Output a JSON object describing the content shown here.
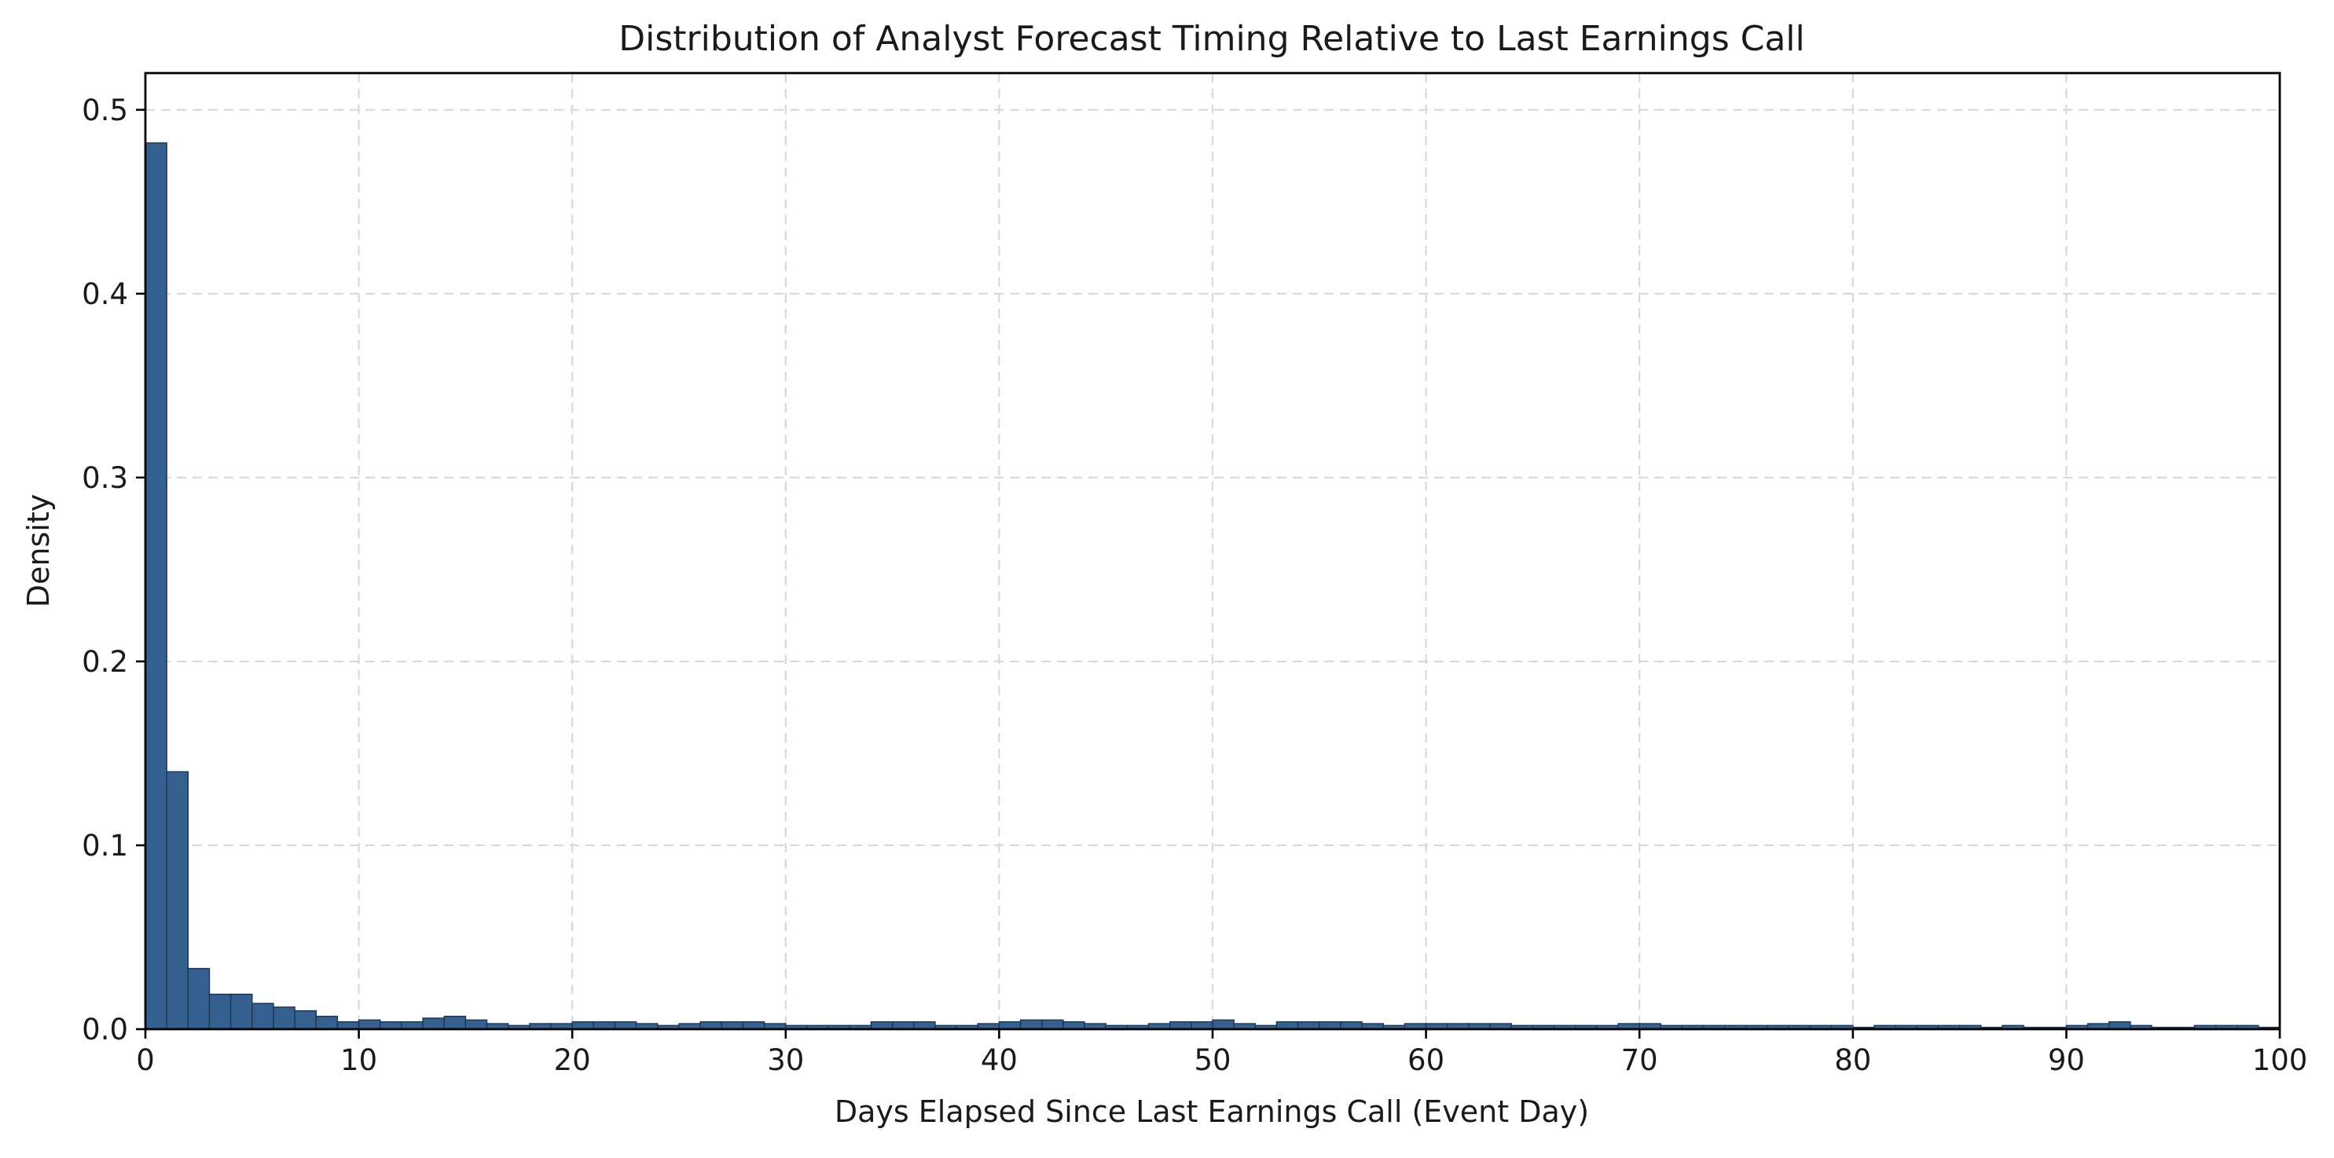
{
  "chart_data": {
    "type": "bar",
    "title": "Distribution of Analyst Forecast Timing Relative to Last Earnings Call",
    "xlabel": "Days Elapsed Since Last Earnings Call (Event Day)",
    "ylabel": "Density",
    "xlim": [
      0,
      100
    ],
    "ylim": [
      0,
      0.52
    ],
    "xticks": [
      "0",
      "10",
      "20",
      "30",
      "40",
      "50",
      "60",
      "70",
      "80",
      "90",
      "100"
    ],
    "yticks": [
      "0.0",
      "0.1",
      "0.2",
      "0.3",
      "0.4",
      "0.5"
    ],
    "grid": true,
    "bin_width": 1,
    "bin_start": 0,
    "values": [
      0.482,
      0.14,
      0.033,
      0.019,
      0.019,
      0.014,
      0.012,
      0.01,
      0.007,
      0.004,
      0.005,
      0.004,
      0.004,
      0.006,
      0.007,
      0.005,
      0.003,
      0.002,
      0.003,
      0.003,
      0.004,
      0.004,
      0.004,
      0.003,
      0.002,
      0.003,
      0.004,
      0.004,
      0.004,
      0.003,
      0.002,
      0.002,
      0.002,
      0.002,
      0.004,
      0.004,
      0.004,
      0.002,
      0.002,
      0.003,
      0.004,
      0.005,
      0.005,
      0.004,
      0.003,
      0.002,
      0.002,
      0.003,
      0.004,
      0.004,
      0.005,
      0.003,
      0.002,
      0.004,
      0.004,
      0.004,
      0.004,
      0.003,
      0.002,
      0.003,
      0.003,
      0.003,
      0.003,
      0.003,
      0.002,
      0.002,
      0.002,
      0.002,
      0.002,
      0.003,
      0.003,
      0.002,
      0.002,
      0.002,
      0.002,
      0.002,
      0.002,
      0.002,
      0.002,
      0.002,
      0.001,
      0.002,
      0.002,
      0.002,
      0.002,
      0.002,
      0.001,
      0.002,
      0.001,
      0.001,
      0.002,
      0.003,
      0.004,
      0.002,
      0.001,
      0.001,
      0.002,
      0.002,
      0.002,
      0.001
    ],
    "colors": {
      "bar_fill": "#34608f",
      "bar_edge": "#1d3550",
      "grid": "#d9d9d9"
    }
  }
}
